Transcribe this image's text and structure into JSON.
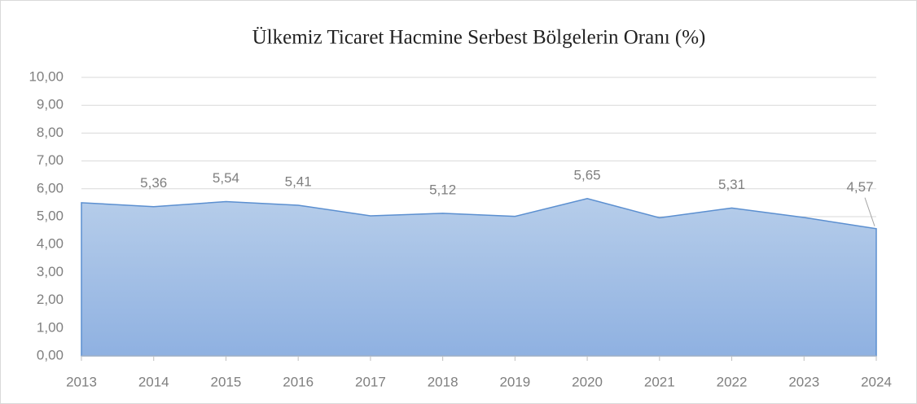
{
  "chart_data": {
    "type": "area",
    "title": "Ülkemiz Ticaret Hacmine Serbest Bölgelerin Oranı (%)",
    "categories": [
      "2013",
      "2014",
      "2015",
      "2016",
      "2017",
      "2018",
      "2019",
      "2020",
      "2021",
      "2022",
      "2023",
      "2024"
    ],
    "values": [
      5.5,
      5.36,
      5.54,
      5.41,
      5.03,
      5.12,
      5.01,
      5.65,
      4.96,
      5.31,
      4.97,
      4.57
    ],
    "value_labels": [
      null,
      "5,36",
      "5,54",
      "5,41",
      null,
      "5,12",
      null,
      "5,65",
      null,
      "5,31",
      null,
      "4,57"
    ],
    "color": "#5b8fd0",
    "ylim": [
      0,
      10
    ],
    "yticks": [
      {
        "value": 0,
        "label": "0,00"
      },
      {
        "value": 1,
        "label": "1,00"
      },
      {
        "value": 2,
        "label": "2,00"
      },
      {
        "value": 3,
        "label": "3,00"
      },
      {
        "value": 4,
        "label": "4,00"
      },
      {
        "value": 5,
        "label": "5,00"
      },
      {
        "value": 6,
        "label": "6,00"
      },
      {
        "value": 7,
        "label": "7,00"
      },
      {
        "value": 8,
        "label": "8,00"
      },
      {
        "value": 9,
        "label": "9,00"
      },
      {
        "value": 10,
        "label": "10,00"
      }
    ],
    "grid": true
  }
}
